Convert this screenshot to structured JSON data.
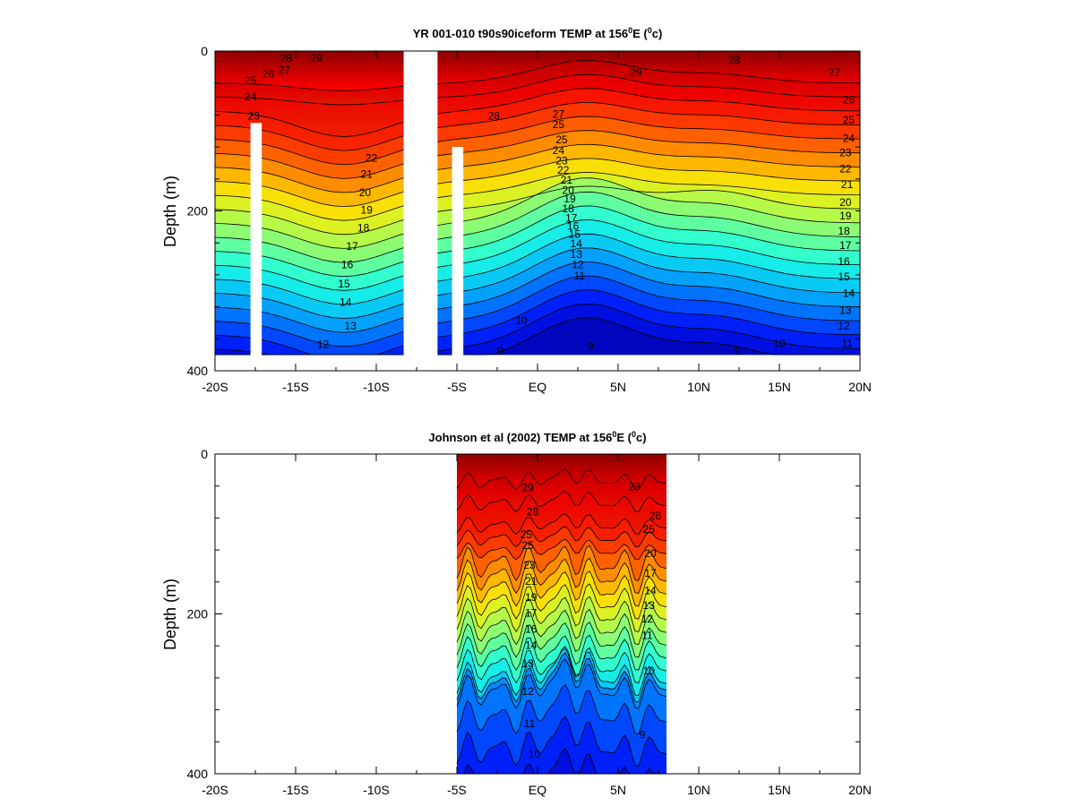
{
  "chart_data": [
    {
      "type": "heatmap",
      "title_main": "YR 001-010 t90s90iceform TEMP at 156",
      "title_sup": "0",
      "title_tail": "E (",
      "title_unit_sup": "0",
      "title_unit": "c)",
      "ylabel": "Depth (m)",
      "xlabel": "",
      "x_ticks": [
        "-20S",
        "-15S",
        "-10S",
        "-5S",
        "EQ",
        "5N",
        "10N",
        "15N",
        "20N"
      ],
      "y_ticks": [
        "0",
        "200",
        "400"
      ],
      "x_range": [
        -20,
        20
      ],
      "y_range": [
        0,
        400
      ],
      "y_inverted": true,
      "data_extent": {
        "x": [
          -20,
          20
        ],
        "depth": [
          0,
          380
        ]
      },
      "colorscale": [
        "#00008b",
        "#0000ff",
        "#0080ff",
        "#00ffff",
        "#80ff80",
        "#ffff00",
        "#ff8000",
        "#ff0000",
        "#8b0000"
      ],
      "temp_range": [
        8,
        30
      ],
      "contour_levels": [
        9,
        10,
        11,
        12,
        13,
        14,
        15,
        16,
        17,
        18,
        19,
        20,
        21,
        22,
        23,
        24,
        25,
        26,
        27,
        28,
        29
      ],
      "missing_bars": [
        {
          "x0": -17.8,
          "x1": -17.1,
          "depth0": 90,
          "depth1": 400
        },
        {
          "x0": -8.3,
          "x1": -6.2,
          "depth0": 0,
          "depth1": 400
        },
        {
          "x0": -5.3,
          "x1": -4.6,
          "depth0": 120,
          "depth1": 400
        }
      ],
      "contour_labels": [
        {
          "text": "29",
          "x": -13.7,
          "d": 10
        },
        {
          "text": "28",
          "x": -15.6,
          "d": 10
        },
        {
          "text": "27",
          "x": -15.7,
          "d": 25
        },
        {
          "text": "26",
          "x": -16.7,
          "d": 30
        },
        {
          "text": "25",
          "x": -17.8,
          "d": 38
        },
        {
          "text": "24",
          "x": -17.8,
          "d": 58
        },
        {
          "text": "23",
          "x": -17.6,
          "d": 82
        },
        {
          "text": "22",
          "x": -10.3,
          "d": 135
        },
        {
          "text": "21",
          "x": -10.6,
          "d": 155
        },
        {
          "text": "20",
          "x": -10.7,
          "d": 178
        },
        {
          "text": "19",
          "x": -10.6,
          "d": 200
        },
        {
          "text": "18",
          "x": -10.8,
          "d": 222
        },
        {
          "text": "17",
          "x": -11.5,
          "d": 245
        },
        {
          "text": "16",
          "x": -11.8,
          "d": 268
        },
        {
          "text": "15",
          "x": -12.0,
          "d": 292
        },
        {
          "text": "14",
          "x": -11.9,
          "d": 315
        },
        {
          "text": "13",
          "x": -11.6,
          "d": 345
        },
        {
          "text": "12",
          "x": -13.3,
          "d": 368
        },
        {
          "text": "29",
          "x": 6.1,
          "d": 28
        },
        {
          "text": "28",
          "x": 12.2,
          "d": 12
        },
        {
          "text": "27",
          "x": 18.4,
          "d": 28
        },
        {
          "text": "28",
          "x": -2.7,
          "d": 82
        },
        {
          "text": "27",
          "x": 1.3,
          "d": 80
        },
        {
          "text": "25",
          "x": 1.3,
          "d": 93
        },
        {
          "text": "25",
          "x": 1.5,
          "d": 112
        },
        {
          "text": "24",
          "x": 1.3,
          "d": 125
        },
        {
          "text": "23",
          "x": 1.5,
          "d": 138
        },
        {
          "text": "22",
          "x": 1.6,
          "d": 150
        },
        {
          "text": "21",
          "x": 1.8,
          "d": 162
        },
        {
          "text": "20",
          "x": 1.9,
          "d": 175
        },
        {
          "text": "19",
          "x": 2.0,
          "d": 186
        },
        {
          "text": "18",
          "x": 1.9,
          "d": 198
        },
        {
          "text": "17",
          "x": 2.1,
          "d": 210
        },
        {
          "text": "16",
          "x": 2.2,
          "d": 220
        },
        {
          "text": "15",
          "x": 2.3,
          "d": 230
        },
        {
          "text": "14",
          "x": 2.4,
          "d": 242
        },
        {
          "text": "13",
          "x": 2.4,
          "d": 255
        },
        {
          "text": "12",
          "x": 2.5,
          "d": 268
        },
        {
          "text": "11",
          "x": 2.6,
          "d": 282
        },
        {
          "text": "10",
          "x": -1.0,
          "d": 338
        },
        {
          "text": "9",
          "x": -2.3,
          "d": 376
        },
        {
          "text": "9",
          "x": 3.3,
          "d": 370
        },
        {
          "text": "9",
          "x": 12.4,
          "d": 376
        },
        {
          "text": "10",
          "x": 15.0,
          "d": 367
        },
        {
          "text": "11",
          "x": 19.2,
          "d": 367
        },
        {
          "text": "26",
          "x": 19.3,
          "d": 62
        },
        {
          "text": "25",
          "x": 19.3,
          "d": 87
        },
        {
          "text": "24",
          "x": 19.3,
          "d": 110
        },
        {
          "text": "23",
          "x": 19.1,
          "d": 128
        },
        {
          "text": "22",
          "x": 19.1,
          "d": 148
        },
        {
          "text": "21",
          "x": 19.2,
          "d": 168
        },
        {
          "text": "20",
          "x": 19.1,
          "d": 190
        },
        {
          "text": "19",
          "x": 19.1,
          "d": 207
        },
        {
          "text": "18",
          "x": 19.0,
          "d": 226
        },
        {
          "text": "17",
          "x": 19.1,
          "d": 244
        },
        {
          "text": "16",
          "x": 19.0,
          "d": 264
        },
        {
          "text": "15",
          "x": 19.0,
          "d": 283
        },
        {
          "text": "14",
          "x": 19.3,
          "d": 304
        },
        {
          "text": "13",
          "x": 19.1,
          "d": 325
        },
        {
          "text": "12",
          "x": 19.0,
          "d": 345
        }
      ]
    },
    {
      "type": "heatmap",
      "title_main": "Johnson et al (2002) TEMP at 156",
      "title_sup": "0",
      "title_tail": "E (",
      "title_unit_sup": "0",
      "title_unit": "c)",
      "ylabel": "Depth (m)",
      "xlabel": "",
      "x_ticks": [
        "-20S",
        "-15S",
        "-10S",
        "-5S",
        "EQ",
        "5N",
        "10N",
        "15N",
        "20N"
      ],
      "y_ticks": [
        "0",
        "200",
        "400"
      ],
      "x_range": [
        -20,
        20
      ],
      "y_range": [
        0,
        400
      ],
      "y_inverted": true,
      "data_extent": {
        "x": [
          -5,
          8
        ],
        "depth": [
          0,
          400
        ]
      },
      "colorscale": [
        "#00008b",
        "#0000ff",
        "#0080ff",
        "#00ffff",
        "#80ff80",
        "#ffff00",
        "#ff8000",
        "#ff0000",
        "#8b0000"
      ],
      "temp_range": [
        8,
        30
      ],
      "contour_levels": [
        9,
        10,
        11,
        12,
        13,
        14,
        15,
        16,
        17,
        18,
        19,
        20,
        21,
        22,
        23,
        24,
        25,
        26,
        27,
        28,
        29
      ],
      "missing_bars": [],
      "contour_labels": [
        {
          "text": "29",
          "x": -0.6,
          "d": 43
        },
        {
          "text": "29",
          "x": 6.0,
          "d": 42
        },
        {
          "text": "28",
          "x": -0.3,
          "d": 73
        },
        {
          "text": "25",
          "x": -0.7,
          "d": 102
        },
        {
          "text": "25",
          "x": -0.6,
          "d": 115
        },
        {
          "text": "23",
          "x": -0.5,
          "d": 140
        },
        {
          "text": "21",
          "x": -0.4,
          "d": 160
        },
        {
          "text": "19",
          "x": -0.4,
          "d": 180
        },
        {
          "text": "17",
          "x": -0.4,
          "d": 200
        },
        {
          "text": "16",
          "x": -0.4,
          "d": 220
        },
        {
          "text": "14",
          "x": -0.4,
          "d": 240
        },
        {
          "text": "13",
          "x": -0.6,
          "d": 263
        },
        {
          "text": "12",
          "x": -0.6,
          "d": 298
        },
        {
          "text": "11",
          "x": -0.5,
          "d": 338
        },
        {
          "text": "10",
          "x": -0.2,
          "d": 376
        },
        {
          "text": "9",
          "x": 6.5,
          "d": 352
        },
        {
          "text": "10",
          "x": 6.9,
          "d": 272
        },
        {
          "text": "11",
          "x": 6.8,
          "d": 228
        },
        {
          "text": "12",
          "x": 6.8,
          "d": 207
        },
        {
          "text": "13",
          "x": 6.9,
          "d": 190
        },
        {
          "text": "14",
          "x": 7.0,
          "d": 172
        },
        {
          "text": "17",
          "x": 7.0,
          "d": 150
        },
        {
          "text": "20",
          "x": 7.0,
          "d": 125
        },
        {
          "text": "25",
          "x": 6.9,
          "d": 95
        },
        {
          "text": "28",
          "x": 7.3,
          "d": 78
        }
      ]
    }
  ]
}
